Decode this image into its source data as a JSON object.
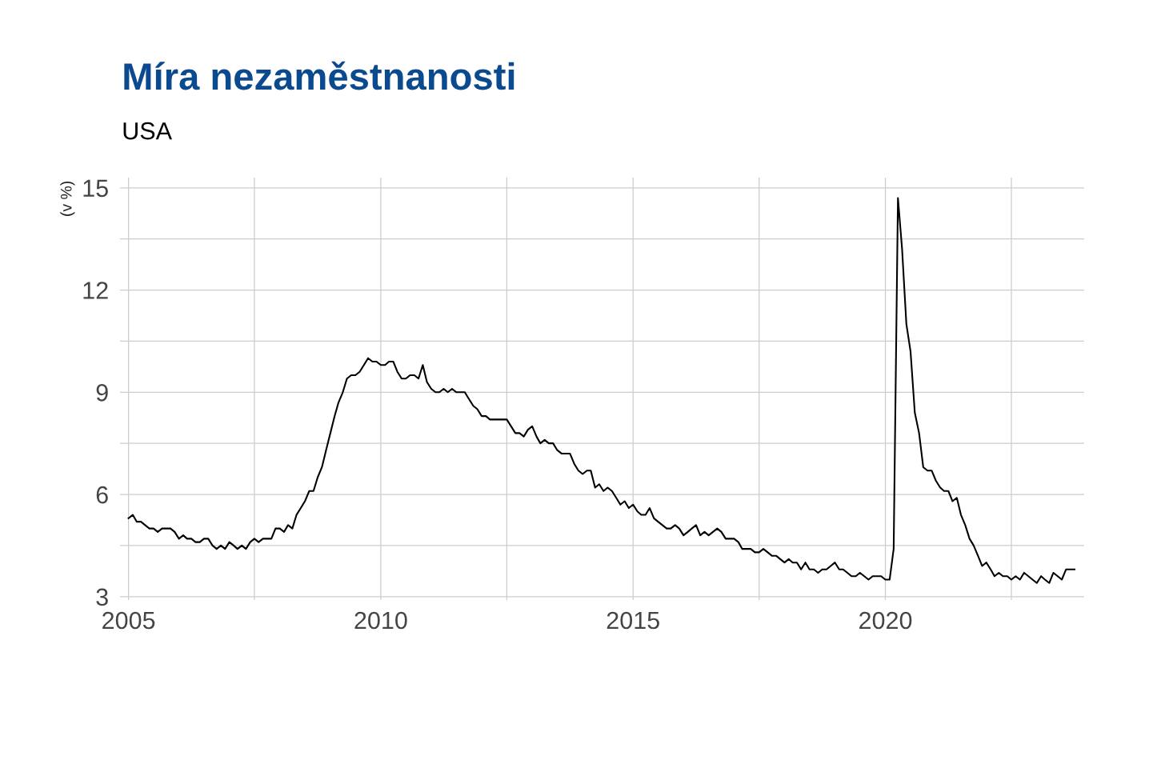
{
  "chart_data": {
    "type": "line",
    "title": "Míra nezaměstnanosti",
    "subtitle": "USA",
    "ylabel": "(v %)",
    "x": [
      "2005-01",
      "2005-02",
      "2005-03",
      "2005-04",
      "2005-05",
      "2005-06",
      "2005-07",
      "2005-08",
      "2005-09",
      "2005-10",
      "2005-11",
      "2005-12",
      "2006-01",
      "2006-02",
      "2006-03",
      "2006-04",
      "2006-05",
      "2006-06",
      "2006-07",
      "2006-08",
      "2006-09",
      "2006-10",
      "2006-11",
      "2006-12",
      "2007-01",
      "2007-02",
      "2007-03",
      "2007-04",
      "2007-05",
      "2007-06",
      "2007-07",
      "2007-08",
      "2007-09",
      "2007-10",
      "2007-11",
      "2007-12",
      "2008-01",
      "2008-02",
      "2008-03",
      "2008-04",
      "2008-05",
      "2008-06",
      "2008-07",
      "2008-08",
      "2008-09",
      "2008-10",
      "2008-11",
      "2008-12",
      "2009-01",
      "2009-02",
      "2009-03",
      "2009-04",
      "2009-05",
      "2009-06",
      "2009-07",
      "2009-08",
      "2009-09",
      "2009-10",
      "2009-11",
      "2009-12",
      "2010-01",
      "2010-02",
      "2010-03",
      "2010-04",
      "2010-05",
      "2010-06",
      "2010-07",
      "2010-08",
      "2010-09",
      "2010-10",
      "2010-11",
      "2010-12",
      "2011-01",
      "2011-02",
      "2011-03",
      "2011-04",
      "2011-05",
      "2011-06",
      "2011-07",
      "2011-08",
      "2011-09",
      "2011-10",
      "2011-11",
      "2011-12",
      "2012-01",
      "2012-02",
      "2012-03",
      "2012-04",
      "2012-05",
      "2012-06",
      "2012-07",
      "2012-08",
      "2012-09",
      "2012-10",
      "2012-11",
      "2012-12",
      "2013-01",
      "2013-02",
      "2013-03",
      "2013-04",
      "2013-05",
      "2013-06",
      "2013-07",
      "2013-08",
      "2013-09",
      "2013-10",
      "2013-11",
      "2013-12",
      "2014-01",
      "2014-02",
      "2014-03",
      "2014-04",
      "2014-05",
      "2014-06",
      "2014-07",
      "2014-08",
      "2014-09",
      "2014-10",
      "2014-11",
      "2014-12",
      "2015-01",
      "2015-02",
      "2015-03",
      "2015-04",
      "2015-05",
      "2015-06",
      "2015-07",
      "2015-08",
      "2015-09",
      "2015-10",
      "2015-11",
      "2015-12",
      "2016-01",
      "2016-02",
      "2016-03",
      "2016-04",
      "2016-05",
      "2016-06",
      "2016-07",
      "2016-08",
      "2016-09",
      "2016-10",
      "2016-11",
      "2016-12",
      "2017-01",
      "2017-02",
      "2017-03",
      "2017-04",
      "2017-05",
      "2017-06",
      "2017-07",
      "2017-08",
      "2017-09",
      "2017-10",
      "2017-11",
      "2017-12",
      "2018-01",
      "2018-02",
      "2018-03",
      "2018-04",
      "2018-05",
      "2018-06",
      "2018-07",
      "2018-08",
      "2018-09",
      "2018-10",
      "2018-11",
      "2018-12",
      "2019-01",
      "2019-02",
      "2019-03",
      "2019-04",
      "2019-05",
      "2019-06",
      "2019-07",
      "2019-08",
      "2019-09",
      "2019-10",
      "2019-11",
      "2019-12",
      "2020-01",
      "2020-02",
      "2020-03",
      "2020-04",
      "2020-05",
      "2020-06",
      "2020-07",
      "2020-08",
      "2020-09",
      "2020-10",
      "2020-11",
      "2020-12",
      "2021-01",
      "2021-02",
      "2021-03",
      "2021-04",
      "2021-05",
      "2021-06",
      "2021-07",
      "2021-08",
      "2021-09",
      "2021-10",
      "2021-11",
      "2021-12",
      "2022-01",
      "2022-02",
      "2022-03",
      "2022-04",
      "2022-05",
      "2022-06",
      "2022-07",
      "2022-08",
      "2022-09",
      "2022-10",
      "2022-11",
      "2022-12",
      "2023-01",
      "2023-02",
      "2023-03",
      "2023-04",
      "2023-05",
      "2023-06",
      "2023-07",
      "2023-08",
      "2023-09",
      "2023-10"
    ],
    "series": [
      {
        "color": "#000000",
        "values": [
          5.3,
          5.4,
          5.2,
          5.2,
          5.1,
          5.0,
          5.0,
          4.9,
          5.0,
          5.0,
          5.0,
          4.9,
          4.7,
          4.8,
          4.7,
          4.7,
          4.6,
          4.6,
          4.7,
          4.7,
          4.5,
          4.4,
          4.5,
          4.4,
          4.6,
          4.5,
          4.4,
          4.5,
          4.4,
          4.6,
          4.7,
          4.6,
          4.7,
          4.7,
          4.7,
          5.0,
          5.0,
          4.9,
          5.1,
          5.0,
          5.4,
          5.6,
          5.8,
          6.1,
          6.1,
          6.5,
          6.8,
          7.3,
          7.8,
          8.3,
          8.7,
          9.0,
          9.4,
          9.5,
          9.5,
          9.6,
          9.8,
          10.0,
          9.9,
          9.9,
          9.8,
          9.8,
          9.9,
          9.9,
          9.6,
          9.4,
          9.4,
          9.5,
          9.5,
          9.4,
          9.8,
          9.3,
          9.1,
          9.0,
          9.0,
          9.1,
          9.0,
          9.1,
          9.0,
          9.0,
          9.0,
          8.8,
          8.6,
          8.5,
          8.3,
          8.3,
          8.2,
          8.2,
          8.2,
          8.2,
          8.2,
          8.0,
          7.8,
          7.8,
          7.7,
          7.9,
          8.0,
          7.7,
          7.5,
          7.6,
          7.5,
          7.5,
          7.3,
          7.2,
          7.2,
          7.2,
          6.9,
          6.7,
          6.6,
          6.7,
          6.7,
          6.2,
          6.3,
          6.1,
          6.2,
          6.1,
          5.9,
          5.7,
          5.8,
          5.6,
          5.7,
          5.5,
          5.4,
          5.4,
          5.6,
          5.3,
          5.2,
          5.1,
          5.0,
          5.0,
          5.1,
          5.0,
          4.8,
          4.9,
          5.0,
          5.1,
          4.8,
          4.9,
          4.8,
          4.9,
          5.0,
          4.9,
          4.7,
          4.7,
          4.7,
          4.6,
          4.4,
          4.4,
          4.4,
          4.3,
          4.3,
          4.4,
          4.3,
          4.2,
          4.2,
          4.1,
          4.0,
          4.1,
          4.0,
          4.0,
          3.8,
          4.0,
          3.8,
          3.8,
          3.7,
          3.8,
          3.8,
          3.9,
          4.0,
          3.8,
          3.8,
          3.7,
          3.6,
          3.6,
          3.7,
          3.6,
          3.5,
          3.6,
          3.6,
          3.6,
          3.5,
          3.5,
          4.4,
          14.7,
          13.2,
          11.0,
          10.2,
          8.4,
          7.8,
          6.8,
          6.7,
          6.7,
          6.4,
          6.2,
          6.1,
          6.1,
          5.8,
          5.9,
          5.4,
          5.1,
          4.7,
          4.5,
          4.2,
          3.9,
          4.0,
          3.8,
          3.6,
          3.7,
          3.6,
          3.6,
          3.5,
          3.6,
          3.5,
          3.7,
          3.6,
          3.5,
          3.4,
          3.6,
          3.5,
          3.4,
          3.7,
          3.6,
          3.5,
          3.8,
          3.8,
          3.8
        ]
      }
    ],
    "xlim": [
      "2004-11-01",
      "2023-12-10"
    ],
    "xticks": [
      {
        "value": "2005",
        "label": "2005"
      },
      {
        "value": "2007-07",
        "label": null
      },
      {
        "value": "2010",
        "label": "2010"
      },
      {
        "value": "2012-07",
        "label": null
      },
      {
        "value": "2015",
        "label": "2015"
      },
      {
        "value": "2017-07",
        "label": null
      },
      {
        "value": "2020",
        "label": "2020"
      },
      {
        "value": "2022-07",
        "label": null
      }
    ],
    "ylim": [
      2.9,
      15.3
    ],
    "yticks": [
      3,
      {
        "value": 4.5,
        "label": null
      },
      6,
      {
        "value": 7.5,
        "label": null
      },
      9,
      {
        "value": 10.5,
        "label": null
      },
      12,
      {
        "value": 13.5,
        "label": null
      },
      15
    ],
    "grid": true,
    "legend": false,
    "marker": "none",
    "line_style": "solid"
  }
}
